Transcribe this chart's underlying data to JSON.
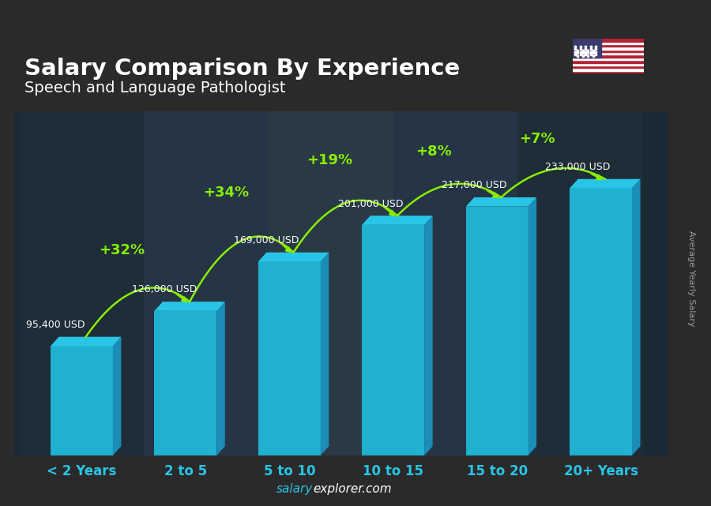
{
  "title": "Salary Comparison By Experience",
  "subtitle": "Speech and Language Pathologist",
  "categories": [
    "< 2 Years",
    "2 to 5",
    "5 to 10",
    "10 to 15",
    "15 to 20",
    "20+ Years"
  ],
  "values": [
    95400,
    126000,
    169000,
    201000,
    217000,
    233000
  ],
  "salary_labels": [
    "95,400 USD",
    "126,000 USD",
    "169,000 USD",
    "201,000 USD",
    "217,000 USD",
    "233,000 USD"
  ],
  "pct_labels": [
    null,
    "+32%",
    "+34%",
    "+19%",
    "+8%",
    "+7%"
  ],
  "bar_color_top": "#29C5E6",
  "bar_color_side": "#1A8DB8",
  "bar_color_front": "#20B0D0",
  "background_color": "#2a2a2a",
  "overlay_color": "#1a2a35",
  "title_color": "#ffffff",
  "subtitle_color": "#ffffff",
  "salary_label_color": "#ffffff",
  "pct_label_color": "#88ee00",
  "xtick_color": "#29C5E6",
  "ylabel_text": "Average Yearly Salary",
  "ylabel_color": "#cccccc",
  "watermark_salary": "salary",
  "watermark_rest": "explorer.com",
  "watermark_color_salary": "#29C5E6",
  "watermark_color_rest": "#ffffff",
  "ylim": [
    0,
    300000
  ],
  "figsize": [
    9.0,
    6.41
  ],
  "dpi": 100,
  "bar_width": 0.6
}
